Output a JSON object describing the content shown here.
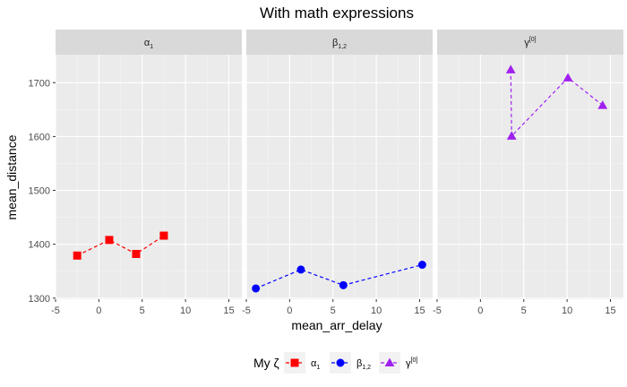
{
  "chart_data": {
    "type": "line",
    "title": "With math expressions",
    "xlabel": "mean_arr_delay",
    "ylabel": "mean_distance",
    "xlim": [
      -5,
      16.5
    ],
    "ylim": [
      1298,
      1752
    ],
    "x_ticks": [
      -5,
      0,
      5,
      10,
      15
    ],
    "y_ticks": [
      1300,
      1400,
      1500,
      1600,
      1700
    ],
    "x_tick_labels": [
      "-5",
      "0",
      "5",
      "10",
      "15"
    ],
    "y_tick_labels": [
      "1300",
      "1400",
      "1500",
      "1600",
      "1700"
    ],
    "facet_by": "series",
    "legend": {
      "title_main": "My ",
      "title_symbol": "ζ",
      "position": "bottom"
    },
    "series": [
      {
        "name": "α1",
        "label_main": "α",
        "label_sub": "1",
        "label_sup": "",
        "color": "#ff0000",
        "shape": "square",
        "points": [
          {
            "x": -2.5,
            "y": 1379
          },
          {
            "x": 1.2,
            "y": 1408
          },
          {
            "x": 4.3,
            "y": 1382
          },
          {
            "x": 7.5,
            "y": 1416
          }
        ]
      },
      {
        "name": "β1,2",
        "label_main": "β",
        "label_sub": "1,2",
        "label_sup": "",
        "color": "#0000ff",
        "shape": "circle",
        "points": [
          {
            "x": -3.9,
            "y": 1318
          },
          {
            "x": 1.3,
            "y": 1353
          },
          {
            "x": 6.2,
            "y": 1324
          },
          {
            "x": 15.3,
            "y": 1362
          }
        ]
      },
      {
        "name": "γ[0]",
        "label_main": "γ",
        "label_sub": "",
        "label_sup": "[0]",
        "color": "#a020f0",
        "shape": "triangle",
        "points": [
          {
            "x": 3.5,
            "y": 1724
          },
          {
            "x": 3.6,
            "y": 1601
          },
          {
            "x": 10.1,
            "y": 1709
          },
          {
            "x": 14.1,
            "y": 1658
          }
        ]
      }
    ]
  }
}
